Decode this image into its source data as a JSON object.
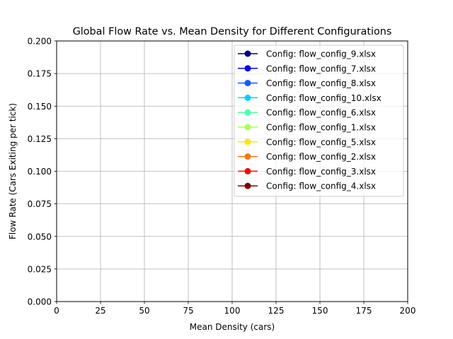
{
  "chart_data": {
    "type": "line",
    "title": "Global Flow Rate vs. Mean Density for Different Configurations",
    "xlabel": "Mean Density (cars)",
    "ylabel": "Flow Rate (Cars Exiting per tick)",
    "xlim": [
      0,
      200
    ],
    "ylim": [
      0,
      0.2
    ],
    "xticks": [
      "0",
      "25",
      "50",
      "75",
      "100",
      "125",
      "150",
      "175",
      "200"
    ],
    "yticks": [
      "0.000",
      "0.025",
      "0.050",
      "0.075",
      "0.100",
      "0.125",
      "0.150",
      "0.175",
      "0.200"
    ],
    "grid": true,
    "legend_position": "top-right",
    "series": [
      {
        "name": "Config: flow_config_9.xlsx",
        "color": "#000080",
        "points": []
      },
      {
        "name": "Config: flow_config_7.xlsx",
        "color": "#0000f1",
        "points": []
      },
      {
        "name": "Config: flow_config_8.xlsx",
        "color": "#0f5cff",
        "points": []
      },
      {
        "name": "Config: flow_config_10.xlsx",
        "color": "#00d4ff",
        "points": []
      },
      {
        "name": "Config: flow_config_6.xlsx",
        "color": "#4dffaa",
        "points": []
      },
      {
        "name": "Config: flow_config_1.xlsx",
        "color": "#aaff4d",
        "points": []
      },
      {
        "name": "Config: flow_config_5.xlsx",
        "color": "#ffe600",
        "points": []
      },
      {
        "name": "Config: flow_config_2.xlsx",
        "color": "#ff7700",
        "points": []
      },
      {
        "name": "Config: flow_config_3.xlsx",
        "color": "#f10f00",
        "points": []
      },
      {
        "name": "Config: flow_config_4.xlsx",
        "color": "#800000",
        "points": []
      }
    ]
  }
}
